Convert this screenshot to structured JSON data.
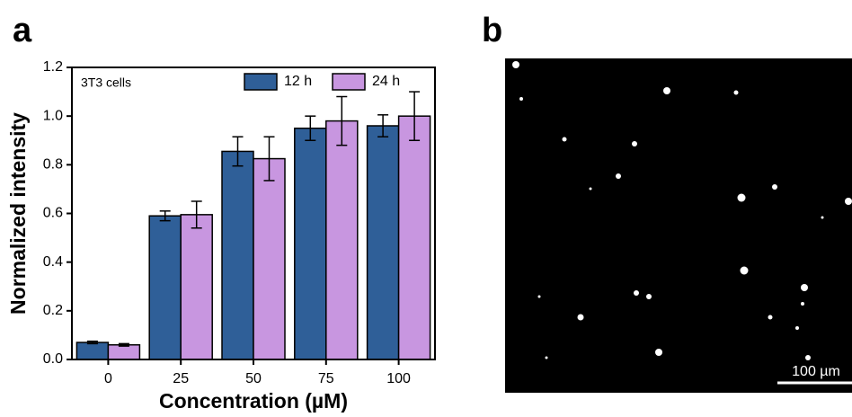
{
  "panel_labels": [
    "a",
    "b"
  ],
  "chart_data": {
    "type": "bar",
    "xlabel": "Concentration (µM)",
    "ylabel": "Normalized intensity",
    "annotation": "3T3 cells",
    "categories": [
      "0",
      "25",
      "50",
      "75",
      "100"
    ],
    "series": [
      {
        "name": "12 h",
        "color": "#2f5f98",
        "values": [
          0.07,
          0.59,
          0.855,
          0.95,
          0.96
        ],
        "errors": [
          0.005,
          0.02,
          0.06,
          0.05,
          0.045
        ]
      },
      {
        "name": "24 h",
        "color": "#c896e0",
        "values": [
          0.06,
          0.595,
          0.825,
          0.98,
          1.0
        ],
        "errors": [
          0.005,
          0.055,
          0.09,
          0.1,
          0.1
        ]
      }
    ],
    "ylim": [
      0,
      1.2
    ],
    "yticks": [
      {
        "value": 0,
        "label": "0.0"
      },
      0.2,
      0.4,
      0.6,
      0.8,
      {
        "value": 1,
        "label": "1.0"
      },
      1.2
    ],
    "legend": "top-right",
    "grid": false
  },
  "image": {
    "scale_bar_label": "100 µm"
  }
}
